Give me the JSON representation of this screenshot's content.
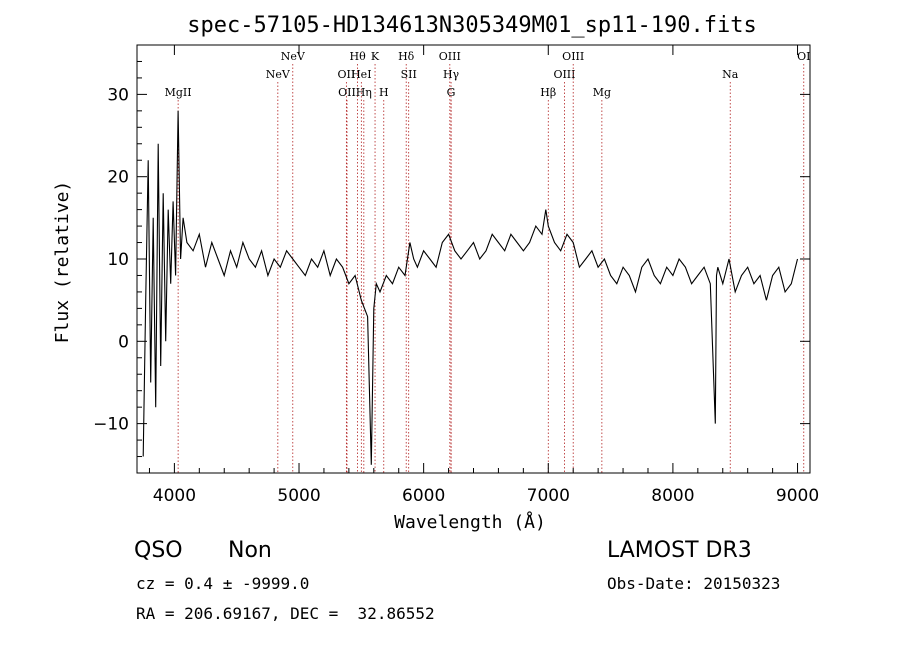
{
  "chart_data": {
    "type": "line",
    "title": "spec-57105-HD134613N305349M01_sp11-190.fits",
    "xlabel": "Wavelength (Å)",
    "ylabel": "Flux (relative)",
    "xlim": [
      3700,
      9100
    ],
    "ylim": [
      -16,
      36
    ],
    "x_ticks": [
      4000,
      5000,
      6000,
      7000,
      8000,
      9000
    ],
    "y_ticks": [
      -10,
      0,
      10,
      20,
      30
    ],
    "grid": false,
    "series": [
      {
        "name": "flux",
        "color": "#000000",
        "x": [
          3750,
          3770,
          3790,
          3810,
          3830,
          3850,
          3870,
          3890,
          3910,
          3930,
          3950,
          3970,
          3990,
          4010,
          4030,
          4050,
          4070,
          4100,
          4150,
          4200,
          4250,
          4300,
          4350,
          4400,
          4450,
          4500,
          4550,
          4600,
          4650,
          4700,
          4750,
          4800,
          4850,
          4900,
          4950,
          5000,
          5050,
          5100,
          5150,
          5200,
          5250,
          5300,
          5350,
          5400,
          5450,
          5500,
          5550,
          5580,
          5600,
          5620,
          5650,
          5700,
          5750,
          5800,
          5850,
          5890,
          5920,
          5950,
          6000,
          6050,
          6100,
          6150,
          6200,
          6250,
          6300,
          6350,
          6400,
          6450,
          6500,
          6550,
          6600,
          6650,
          6700,
          6750,
          6800,
          6850,
          6900,
          6950,
          6980,
          7000,
          7050,
          7100,
          7150,
          7200,
          7250,
          7300,
          7350,
          7400,
          7450,
          7500,
          7550,
          7600,
          7650,
          7700,
          7750,
          7800,
          7850,
          7900,
          7950,
          8000,
          8050,
          8100,
          8150,
          8200,
          8250,
          8300,
          8340,
          8350,
          8360,
          8400,
          8450,
          8500,
          8550,
          8600,
          8650,
          8700,
          8750,
          8800,
          8850,
          8900,
          8950,
          9000
        ],
        "values": [
          -14,
          5,
          22,
          -5,
          15,
          -8,
          24,
          -3,
          18,
          0,
          16,
          7,
          17,
          8,
          28,
          10,
          15,
          12,
          11,
          13,
          9,
          12,
          10,
          8,
          11,
          9,
          12,
          10,
          9,
          11,
          8,
          10,
          9,
          11,
          10,
          9,
          8,
          10,
          9,
          11,
          8,
          10,
          9,
          7,
          8,
          5,
          3,
          -15,
          4,
          7,
          6,
          8,
          7,
          9,
          8,
          12,
          10,
          9,
          11,
          10,
          9,
          12,
          13,
          11,
          10,
          11,
          12,
          10,
          11,
          13,
          12,
          11,
          13,
          12,
          11,
          12,
          14,
          13,
          16,
          14,
          12,
          11,
          13,
          12,
          9,
          10,
          11,
          9,
          10,
          8,
          7,
          9,
          8,
          6,
          9,
          10,
          8,
          7,
          9,
          8,
          10,
          9,
          7,
          8,
          9,
          7,
          -10,
          8,
          9,
          7,
          10,
          6,
          8,
          9,
          7,
          8,
          5,
          8,
          9,
          6,
          7,
          10
        ]
      }
    ],
    "line_markers": [
      {
        "x": 4030,
        "label": "MgII",
        "row": 3
      },
      {
        "x": 4830,
        "label": "NeV",
        "row": 2
      },
      {
        "x": 4950,
        "label": "NeV",
        "row": 1
      },
      {
        "x": 5380,
        "label": "OII",
        "row": 2
      },
      {
        "x": 5385,
        "label": "OII",
        "row": 3
      },
      {
        "x": 5470,
        "label": "Hθ",
        "row": 1
      },
      {
        "x": 5500,
        "label": "HeI",
        "row": 2
      },
      {
        "x": 5520,
        "label": "Hη",
        "row": 3
      },
      {
        "x": 5610,
        "label": "K",
        "row": 1
      },
      {
        "x": 5680,
        "label": "H",
        "row": 3
      },
      {
        "x": 5860,
        "label": "Hδ",
        "row": 1
      },
      {
        "x": 5880,
        "label": "SII",
        "row": 2
      },
      {
        "x": 6210,
        "label": "OIII",
        "row": 1
      },
      {
        "x": 6220,
        "label": "Hγ",
        "row": 2
      },
      {
        "x": 6220,
        "label": "G",
        "row": 3
      },
      {
        "x": 7000,
        "label": "Hβ",
        "row": 3
      },
      {
        "x": 7130,
        "label": "OIII",
        "row": 2
      },
      {
        "x": 7200,
        "label": "OIII",
        "row": 1
      },
      {
        "x": 7430,
        "label": "Mg",
        "row": 3
      },
      {
        "x": 8460,
        "label": "Na",
        "row": 2
      },
      {
        "x": 9050,
        "label": "OI",
        "row": 1
      }
    ]
  },
  "info": {
    "class": "QSO",
    "subclass": "Non",
    "survey": "LAMOST DR3",
    "cz_line": "cz = 0.4 ± -9999.0",
    "obs_date_line": "Obs-Date: 20150323",
    "radec_line": "RA = 206.69167, DEC =  32.86552"
  }
}
